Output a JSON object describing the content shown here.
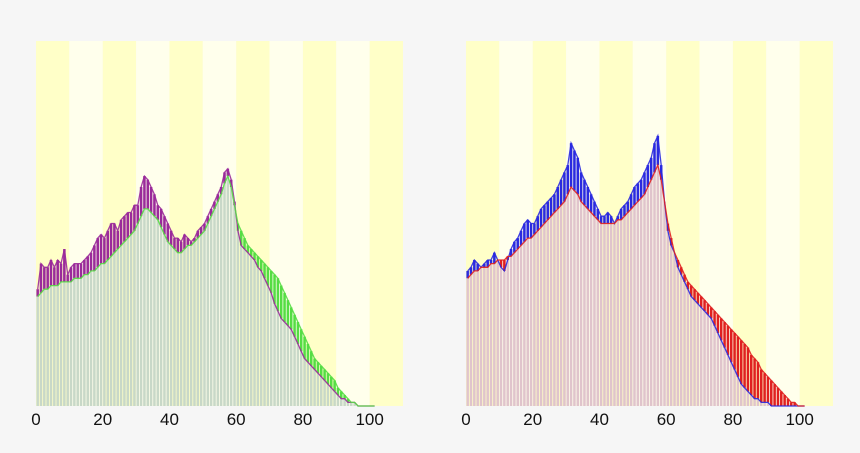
{
  "chart_data": [
    {
      "type": "bar",
      "x_tick_labels": [
        "0",
        "20",
        "40",
        "60",
        "80",
        "100"
      ],
      "xlim": [
        0,
        110
      ],
      "ylim": [
        0,
        100
      ],
      "colors": {
        "band_dark": "#ffffc8",
        "band_light": "#ffffec",
        "series_a": "#9a2a9a",
        "series_b": "#55dd44",
        "bar_fill": "#c8d8c8"
      },
      "series": [
        {
          "values": [
            32,
            39,
            38,
            38,
            40,
            38,
            40,
            39,
            43,
            36,
            38,
            39,
            39,
            39,
            40,
            41,
            42,
            44,
            46,
            47,
            46,
            48,
            50,
            50,
            48,
            51,
            52,
            53,
            53,
            55,
            55,
            60,
            63,
            62,
            60,
            58,
            55,
            54,
            52,
            50,
            48,
            46,
            46,
            45,
            47,
            46,
            45,
            46,
            48,
            49,
            50,
            52,
            54,
            56,
            58,
            60,
            64,
            65,
            62,
            56,
            48,
            44,
            43,
            42,
            41,
            40,
            38,
            37,
            35,
            33,
            31,
            28,
            26,
            24,
            23,
            22,
            21,
            19,
            17,
            15,
            13,
            12,
            11,
            10,
            9,
            8,
            7,
            6,
            5,
            4,
            3,
            2,
            2,
            1,
            1,
            1,
            0,
            0,
            0,
            0,
            0,
            0
          ]
        },
        {
          "values": [
            30,
            31,
            32,
            32,
            33,
            33,
            33,
            34,
            34,
            34,
            34,
            35,
            35,
            35,
            36,
            36,
            37,
            37,
            38,
            39,
            39,
            40,
            41,
            42,
            43,
            44,
            45,
            46,
            47,
            48,
            50,
            52,
            54,
            54,
            53,
            52,
            51,
            49,
            47,
            45,
            44,
            43,
            42,
            42,
            43,
            44,
            44,
            45,
            46,
            47,
            48,
            50,
            52,
            54,
            56,
            58,
            61,
            63,
            60,
            55,
            50,
            48,
            46,
            44,
            43,
            42,
            41,
            40,
            39,
            38,
            37,
            36,
            35,
            33,
            31,
            29,
            27,
            25,
            23,
            21,
            19,
            17,
            15,
            13,
            12,
            11,
            10,
            9,
            8,
            7,
            5,
            4,
            3,
            2,
            1,
            1,
            0,
            0,
            0,
            0,
            0,
            0
          ]
        }
      ]
    },
    {
      "type": "bar",
      "x_tick_labels": [
        "0",
        "20",
        "40",
        "60",
        "80",
        "100"
      ],
      "xlim": [
        0,
        110
      ],
      "ylim": [
        0,
        100
      ],
      "colors": {
        "band_dark": "#ffffc8",
        "band_light": "#ffffec",
        "series_a": "#2a2ae0",
        "series_b": "#e02020",
        "bar_fill": "#e0c4cc"
      },
      "series": [
        {
          "values": [
            37,
            38,
            40,
            39,
            38,
            39,
            40,
            40,
            42,
            40,
            38,
            37,
            40,
            43,
            45,
            46,
            48,
            50,
            51,
            50,
            50,
            52,
            54,
            55,
            56,
            57,
            58,
            60,
            62,
            64,
            66,
            72,
            70,
            68,
            64,
            62,
            60,
            58,
            56,
            54,
            52,
            52,
            53,
            52,
            50,
            52,
            54,
            55,
            56,
            58,
            60,
            61,
            62,
            64,
            66,
            68,
            72,
            74,
            66,
            56,
            48,
            44,
            42,
            38,
            36,
            34,
            32,
            30,
            29,
            28,
            27,
            26,
            25,
            24,
            22,
            20,
            18,
            16,
            14,
            12,
            10,
            8,
            6,
            5,
            4,
            3,
            2,
            2,
            1,
            1,
            1,
            0,
            0,
            0,
            0,
            0,
            0,
            0,
            0,
            0,
            0,
            0
          ]
        },
        {
          "values": [
            35,
            36,
            37,
            37,
            38,
            38,
            38,
            39,
            39,
            40,
            40,
            40,
            41,
            41,
            42,
            43,
            44,
            45,
            46,
            46,
            47,
            48,
            49,
            50,
            51,
            52,
            53,
            54,
            55,
            56,
            58,
            60,
            59,
            58,
            56,
            55,
            54,
            53,
            52,
            51,
            50,
            50,
            50,
            50,
            50,
            51,
            51,
            52,
            53,
            54,
            55,
            56,
            57,
            58,
            60,
            62,
            64,
            66,
            62,
            56,
            50,
            46,
            42,
            40,
            38,
            36,
            34,
            33,
            32,
            31,
            30,
            29,
            28,
            27,
            26,
            25,
            24,
            23,
            22,
            21,
            20,
            19,
            18,
            17,
            16,
            14,
            13,
            12,
            10,
            9,
            8,
            7,
            6,
            5,
            4,
            3,
            2,
            1,
            1,
            0,
            0,
            0
          ]
        }
      ]
    }
  ]
}
